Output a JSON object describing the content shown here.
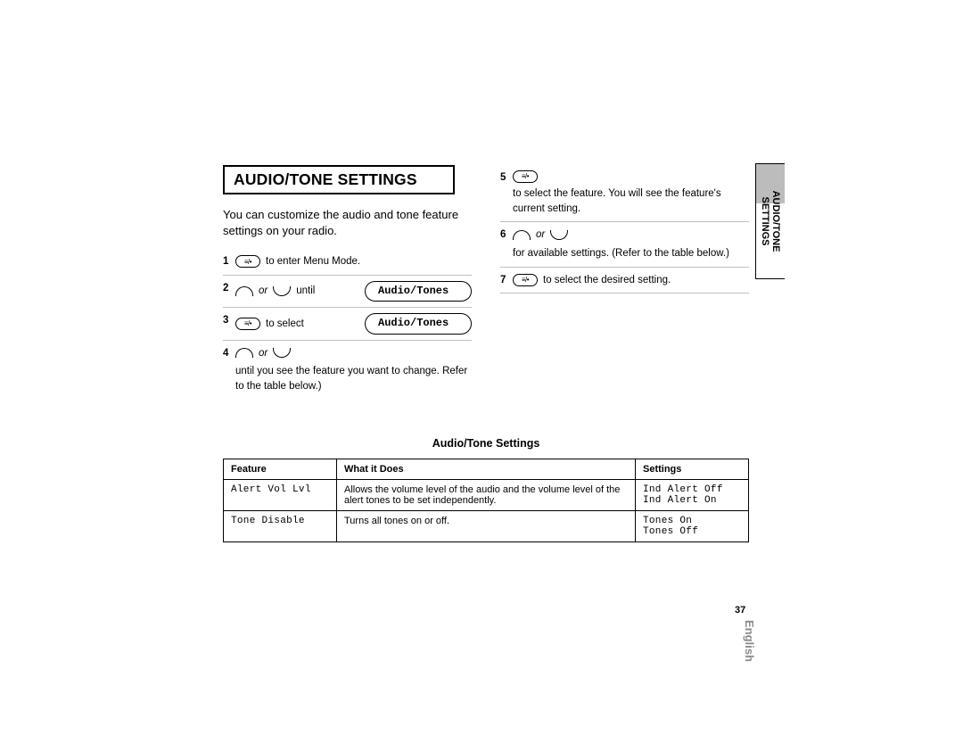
{
  "heading": "AUDIO/TONE SETTINGS",
  "intro": "You can customize the audio and tone feature settings on your radio.",
  "side_tab": {
    "line1": "AUDIO/TONE",
    "line2": "SETTINGS"
  },
  "steps_left": [
    {
      "n": "1",
      "pre_icon": "menu",
      "text": "to enter Menu Mode."
    },
    {
      "n": "2",
      "arcs": true,
      "text": "until",
      "pill": "Audio/Tones"
    },
    {
      "n": "3",
      "pre_icon": "menu",
      "text": "to select",
      "pill": "Audio/Tones"
    },
    {
      "n": "4",
      "arcs": true,
      "text": "until you see the feature you want to change. Refer to the table below.)"
    }
  ],
  "steps_right": [
    {
      "n": "5",
      "pre_icon": "menu",
      "text": "to select the feature. You will see the feature's current setting."
    },
    {
      "n": "6",
      "arcs": true,
      "text": "for available settings. (Refer to the table below.)"
    },
    {
      "n": "7",
      "pre_icon": "menu",
      "text": "to select the desired setting."
    }
  ],
  "table_title": "Audio/Tone Settings",
  "table": {
    "headers": [
      "Feature",
      "What it Does",
      "Settings"
    ],
    "rows": [
      {
        "feature": "Alert Vol Lvl",
        "desc": "Allows the volume level of the audio and the volume level of the alert tones to be set independently.",
        "settings": "Ind Alert Off\nInd Alert On"
      },
      {
        "feature": "Tone Disable",
        "desc": "Turns all tones on or off.",
        "settings": "Tones On\nTones Off"
      }
    ]
  },
  "page_number": "37",
  "language": "English",
  "or_label": "or"
}
